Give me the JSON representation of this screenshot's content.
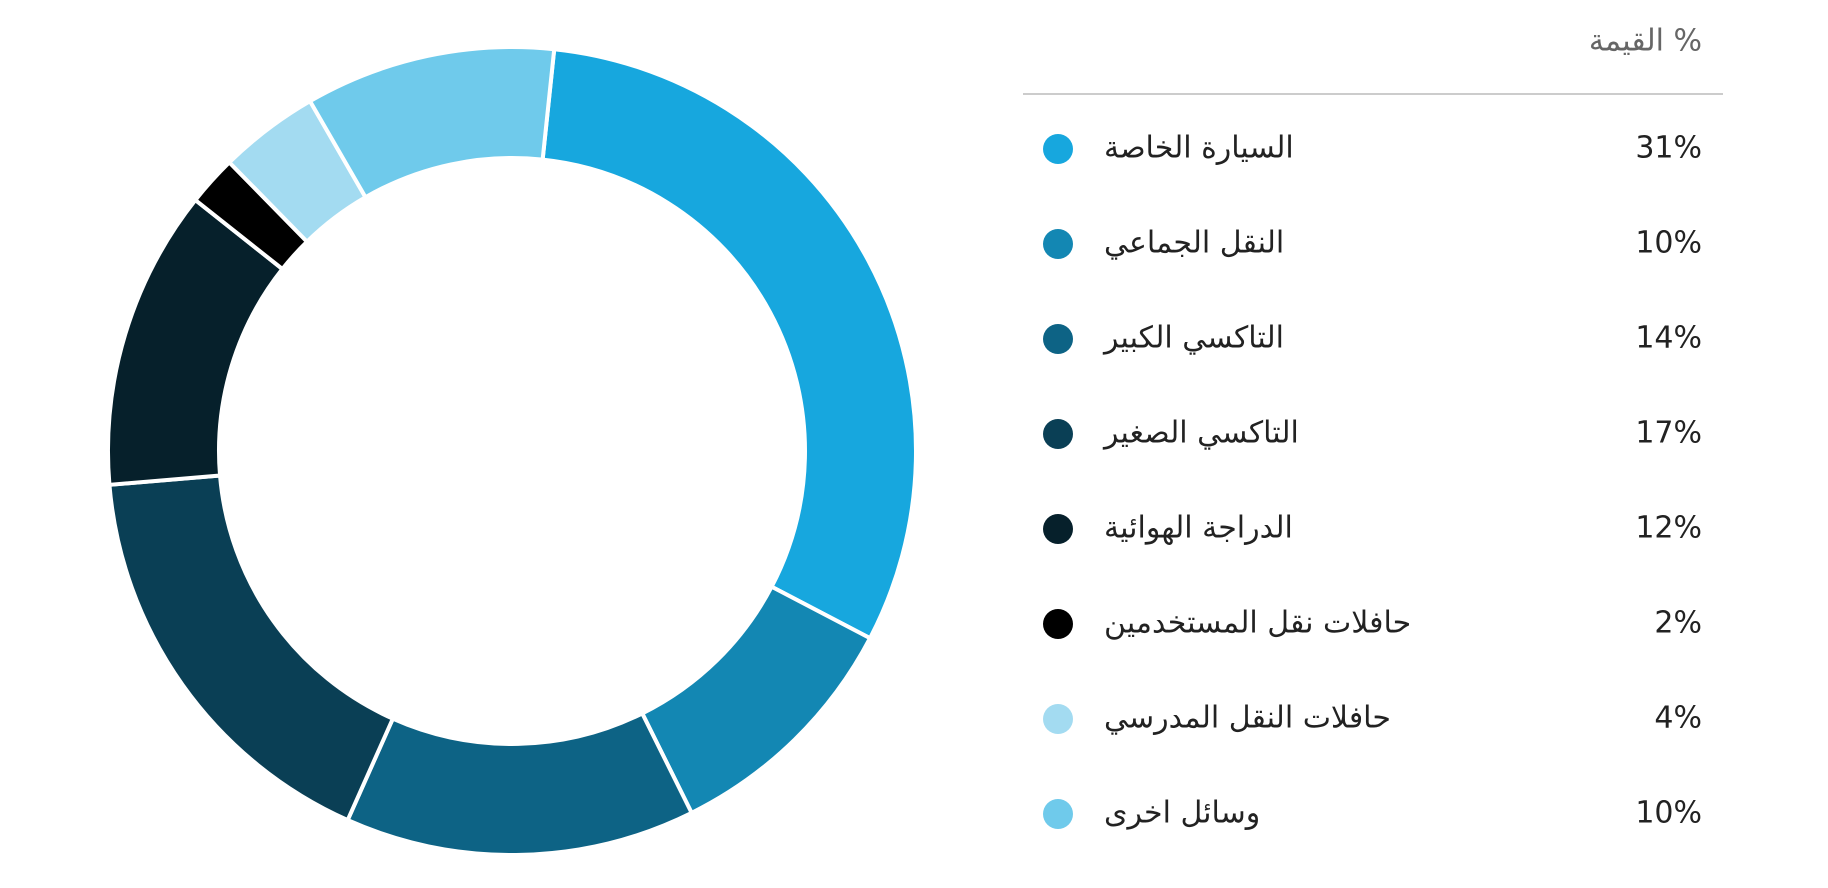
{
  "chart_data": {
    "type": "donut",
    "title": "القيمة %",
    "categories": [
      "السيارة الخاصة",
      "النقل الجماعي",
      "التاكسي الكبير",
      "التاكسي الصغير",
      "الدراجة الهوائية",
      "حافلات نقل المستخدمين",
      "حافلات النقل المدرسي",
      "وسائل اخرى"
    ],
    "values": [
      31,
      10,
      14,
      17,
      12,
      2,
      4,
      10
    ],
    "value_labels": [
      "31%",
      "10%",
      "14%",
      "17%",
      "12%",
      "2%",
      "4%",
      "10%"
    ],
    "colors": [
      "#17a7de",
      "#1387b3",
      "#0d6385",
      "#0a3f55",
      "#06202b",
      "#000000",
      "#a3dbf1",
      "#6fcaeb"
    ]
  }
}
